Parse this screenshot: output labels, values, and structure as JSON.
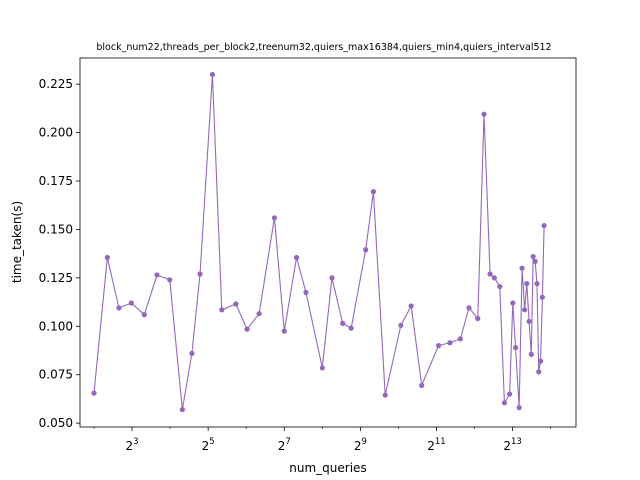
{
  "chart_data": {
    "type": "line",
    "title": "block_num22,threads_per_block2,treenum32,quiers_max16384,quiers_min4,quiers_interval512",
    "xlabel": "num_queries",
    "ylabel": "time_taken(s)",
    "xscale": "log2",
    "xlim": [
      3.1,
      26000
    ],
    "ylim": [
      0.048,
      0.2385
    ],
    "x_ticks": [
      {
        "value": 8,
        "base": "2",
        "exp": "3"
      },
      {
        "value": 32,
        "base": "2",
        "exp": "5"
      },
      {
        "value": 128,
        "base": "2",
        "exp": "7"
      },
      {
        "value": 512,
        "base": "2",
        "exp": "9"
      },
      {
        "value": 2048,
        "base": "2",
        "exp": "11"
      },
      {
        "value": 8192,
        "base": "2",
        "exp": "13"
      }
    ],
    "y_ticks": [
      0.05,
      0.075,
      0.1,
      0.125,
      0.15,
      0.175,
      0.2,
      0.225
    ],
    "y_tick_labels": [
      "0.050",
      "0.075",
      "0.100",
      "0.125",
      "0.150",
      "0.175",
      "0.200",
      "0.225"
    ],
    "grid": false,
    "color": "#9467bd",
    "series": [
      {
        "x": [
          4.0,
          5.1,
          6.3,
          7.9,
          10.0,
          12.6,
          15.9,
          20.0,
          23.8,
          27.6,
          34.6,
          41.0,
          53.0,
          65.0,
          81.0,
          107.0,
          128.0,
          160.0,
          190.0,
          256.0,
          305.0,
          371.0,
          433.0,
          564.0,
          649.0,
          805.0,
          1071.0,
          1292.0,
          1564.0,
          2128.0,
          2613.0,
          3162.0,
          3704.0,
          4344.0,
          4870.0,
          5436.0,
          5880.0,
          6486.0,
          7059.0,
          7766.0,
          8222.0,
          8649.0,
          9232.0,
          9739.0,
          10199.0,
          10607.0,
          11068.0,
          11520.0,
          11909.0,
          12360.0,
          12773.0,
          13194.0,
          13637.0,
          14100.0,
          14541.0
        ],
        "y": [
          0.0655,
          0.1355,
          0.1095,
          0.112,
          0.106,
          0.1265,
          0.124,
          0.057,
          0.086,
          0.127,
          0.23,
          0.1085,
          0.1115,
          0.0985,
          0.1065,
          0.156,
          0.0975,
          0.1355,
          0.1175,
          0.0785,
          0.125,
          0.1015,
          0.099,
          0.1395,
          0.1695,
          0.0645,
          0.1005,
          0.1105,
          0.0695,
          0.09,
          0.0915,
          0.0935,
          0.1095,
          0.104,
          0.2095,
          0.127,
          0.125,
          0.1205,
          0.0605,
          0.065,
          0.112,
          0.089,
          0.058,
          0.13,
          0.1085,
          0.122,
          0.1025,
          0.0855,
          0.136,
          0.1335,
          0.122,
          0.0765,
          0.082,
          0.115,
          0.152
        ]
      }
    ]
  }
}
